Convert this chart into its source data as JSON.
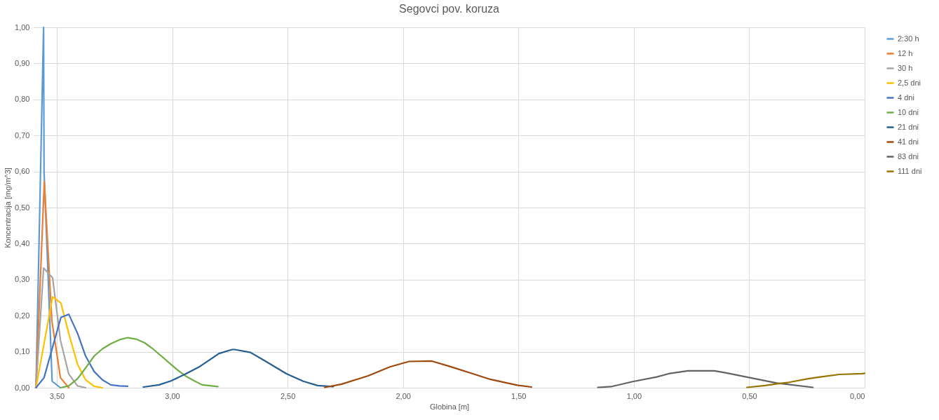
{
  "chart_data": {
    "type": "line",
    "title": "Segovci pov. koruza",
    "xlabel": "Globina [m]",
    "ylabel": "Koncentracija [mg/m^3]",
    "xlim": [
      3.6,
      0
    ],
    "ylim": [
      0,
      1
    ],
    "xticks": [
      {
        "value": 3.5,
        "label": "3,50"
      },
      {
        "value": 3.0,
        "label": "3,00"
      },
      {
        "value": 2.5,
        "label": "2,50"
      },
      {
        "value": 2.0,
        "label": "2,00"
      },
      {
        "value": 1.5,
        "label": "1,50"
      },
      {
        "value": 1.0,
        "label": "1,00"
      },
      {
        "value": 0.5,
        "label": "0,50"
      },
      {
        "value": 0,
        "label": "0,00"
      }
    ],
    "yticks": [
      {
        "value": 0,
        "label": "0,00"
      },
      {
        "value": 0.1,
        "label": "0,10"
      },
      {
        "value": 0.2,
        "label": "0,20"
      },
      {
        "value": 0.3,
        "label": "0,30"
      },
      {
        "value": 0.4,
        "label": "0,40"
      },
      {
        "value": 0.5,
        "label": "0,50"
      },
      {
        "value": 0.6,
        "label": "0,60"
      },
      {
        "value": 0.7,
        "label": "0,70"
      },
      {
        "value": 0.8,
        "label": "0,80"
      },
      {
        "value": 0.9,
        "label": "0,90"
      },
      {
        "value": 1.0,
        "label": "1,00"
      }
    ],
    "grid": true,
    "legend": "right",
    "marker": "none",
    "line_style": "solid",
    "series": [
      {
        "name": "2:30 h",
        "color": "#5b9bd5",
        "x": [
          3.59,
          3.557,
          3.555,
          3.52,
          3.484
        ],
        "values": [
          0,
          1.0,
          0.6,
          0.018,
          0
        ]
      },
      {
        "name": "12 h",
        "color": "#ed7d31",
        "x": [
          3.59,
          3.554,
          3.521,
          3.484,
          3.448
        ],
        "values": [
          0,
          0.572,
          0.185,
          0.028,
          0
        ]
      },
      {
        "name": "30 h",
        "color": "#a5a5a5",
        "x": [
          3.59,
          3.557,
          3.518,
          3.484,
          3.448,
          3.41,
          3.375
        ],
        "values": [
          0,
          0.332,
          0.305,
          0.132,
          0.038,
          0.005,
          0
        ]
      },
      {
        "name": "2,5 dni",
        "color": "#ffc000",
        "x": [
          3.59,
          3.518,
          3.482,
          3.448,
          3.41,
          3.375,
          3.338,
          3.302
        ],
        "values": [
          0,
          0.252,
          0.235,
          0.151,
          0.065,
          0.022,
          0.004,
          0
        ]
      },
      {
        "name": "4 dni",
        "color": "#4472c4",
        "x": [
          3.59,
          3.555,
          3.482,
          3.448,
          3.41,
          3.375,
          3.338,
          3.302,
          3.266,
          3.229,
          3.193
        ],
        "values": [
          0,
          0.028,
          0.195,
          0.204,
          0.151,
          0.088,
          0.045,
          0.022,
          0.008,
          0.005,
          0.004
        ]
      },
      {
        "name": "10 dni",
        "color": "#70ad47",
        "x": [
          3.484,
          3.448,
          3.41,
          3.375,
          3.338,
          3.302,
          3.266,
          3.229,
          3.193,
          3.157,
          3.12,
          3.084,
          3.047,
          3.011,
          2.974,
          2.938,
          2.901,
          2.87,
          2.802
        ],
        "values": [
          0,
          0.005,
          0.025,
          0.055,
          0.088,
          0.108,
          0.122,
          0.133,
          0.139,
          0.135,
          0.125,
          0.108,
          0.088,
          0.068,
          0.048,
          0.031,
          0.018,
          0.008,
          0.003
        ]
      },
      {
        "name": "21 dni",
        "color": "#255e91",
        "x": [
          3.125,
          3.057,
          3.005,
          2.943,
          2.88,
          2.797,
          2.74,
          2.729,
          2.661,
          2.599,
          2.505,
          2.432,
          2.37,
          2.302
        ],
        "values": [
          0.002,
          0.008,
          0.019,
          0.038,
          0.059,
          0.095,
          0.106,
          0.106,
          0.098,
          0.075,
          0.039,
          0.018,
          0.006,
          0.003
        ]
      },
      {
        "name": "41 dni",
        "color": "#9e480e",
        "x": [
          2.339,
          2.266,
          2.151,
          2.057,
          1.974,
          1.875,
          1.797,
          1.693,
          1.62,
          1.505,
          1.443
        ],
        "values": [
          0.001,
          0.01,
          0.033,
          0.058,
          0.073,
          0.074,
          0.059,
          0.038,
          0.023,
          0.007,
          0.002
        ]
      },
      {
        "name": "83 dni",
        "color": "#636363",
        "x": [
          1.156,
          1.099,
          1.005,
          0.901,
          0.849,
          0.766,
          0.651,
          0.599,
          0.505,
          0.38,
          0.224
        ],
        "values": [
          0.001,
          0.003,
          0.017,
          0.03,
          0.039,
          0.047,
          0.047,
          0.041,
          0.029,
          0.013,
          0.001
        ]
      },
      {
        "name": "111 dni",
        "color": "#997300",
        "x": [
          0.51,
          0.432,
          0.38,
          0.328,
          0.245,
          0.193,
          0.109,
          0.01,
          0.0
        ],
        "values": [
          0.001,
          0.006,
          0.011,
          0.015,
          0.025,
          0.03,
          0.037,
          0.039,
          0.04
        ]
      }
    ]
  }
}
